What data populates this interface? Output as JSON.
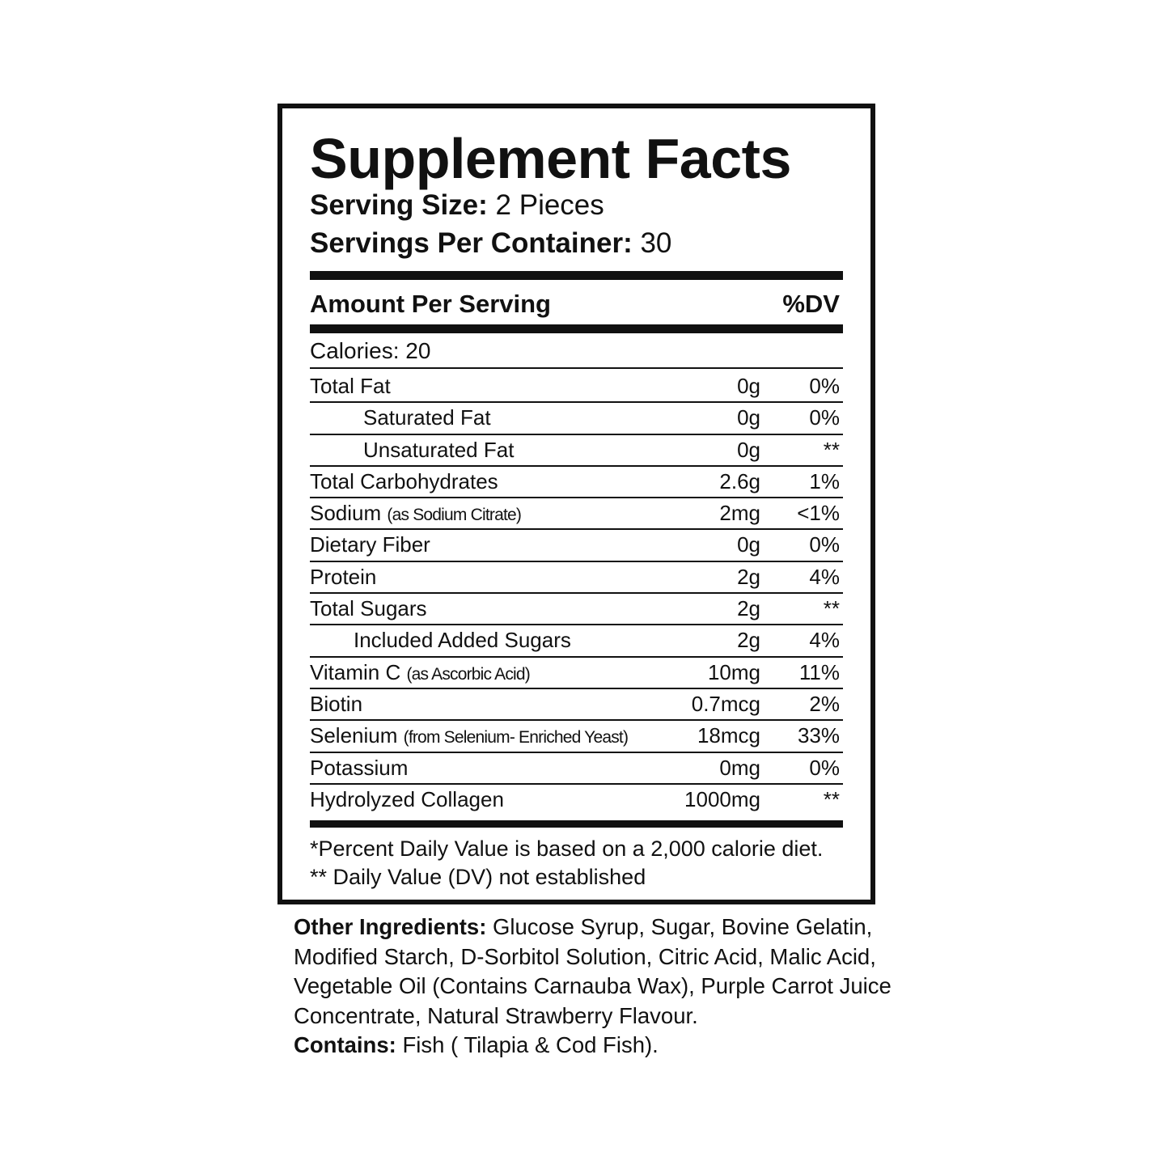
{
  "title": "Supplement Facts",
  "serving_size": {
    "label": "Serving Size:",
    "value": "2 Pieces"
  },
  "servings_per_container": {
    "label": "Servings Per Container:",
    "value": "30"
  },
  "header": {
    "amount": "Amount Per Serving",
    "dv": "%DV"
  },
  "calories": "Calories: 20",
  "rows": [
    {
      "name": "Total Fat",
      "amount": "0g",
      "dv": "0%"
    },
    {
      "name": "Saturated Fat",
      "amount": "0g",
      "dv": "0%"
    },
    {
      "name": "Unsaturated Fat",
      "amount": "0g",
      "dv": "**"
    },
    {
      "name": "Total Carbohydrates",
      "amount": "2.6g",
      "dv": "1%"
    },
    {
      "name": "Sodium",
      "note": "(as Sodium Citrate)",
      "amount": "2mg",
      "dv": "<1%"
    },
    {
      "name": "Dietary Fiber",
      "amount": "0g",
      "dv": "0%"
    },
    {
      "name": "Protein",
      "amount": "2g",
      "dv": "4%"
    },
    {
      "name": "Total Sugars",
      "amount": "2g",
      "dv": "**"
    },
    {
      "name": "Included Added Sugars",
      "amount": "2g",
      "dv": "4%"
    },
    {
      "name": "Vitamin C",
      "note": "(as Ascorbic Acid)",
      "amount": "10mg",
      "dv": "11%"
    },
    {
      "name": "Biotin",
      "amount": "0.7mcg",
      "dv": "2%"
    },
    {
      "name": "Selenium",
      "note": "(from Selenium- Enriched Yeast)",
      "amount": "18mcg",
      "dv": "33%"
    },
    {
      "name": "Potassium",
      "amount": "0mg",
      "dv": "0%"
    },
    {
      "name": "Hydrolyzed Collagen",
      "amount": "1000mg",
      "dv": "**"
    }
  ],
  "footnotes": [
    "*Percent Daily Value is based on a 2,000 calorie diet.",
    "** Daily Value (DV) not established"
  ],
  "other_ingredients": {
    "label": "Other Ingredients:",
    "text": "Glucose Syrup, Sugar, Bovine Gelatin, Modified Starch, D-Sorbitol Solution, Citric Acid, Malic Acid,  Vegetable Oil (Contains Carnauba Wax), Purple Carrot Juice Concentrate, Natural Strawberry Flavour."
  },
  "contains": {
    "label": "Contains:",
    "text": "Fish ( Tilapia & Cod Fish)."
  }
}
